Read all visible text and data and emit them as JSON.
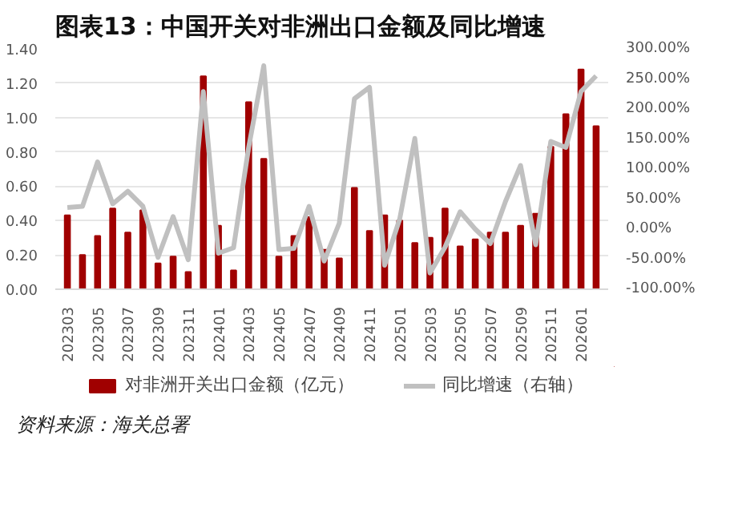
{
  "chart_data": {
    "type": "bar",
    "title": "图表13：中国开关对非洲出口金额及同比增速",
    "categories": [
      "202303",
      null,
      "202305",
      null,
      "202307",
      null,
      "202309",
      null,
      "202311",
      null,
      "202401",
      null,
      "202403",
      null,
      "202405",
      null,
      "202407",
      null,
      "202409",
      null,
      "202411",
      null,
      "202501",
      null,
      "202503",
      null,
      "202505",
      null,
      "202507",
      null,
      "202509",
      null,
      "202511",
      null,
      "202601",
      null
    ],
    "series": [
      {
        "name": "对非洲开关出口金额（亿元）",
        "color": "#a00000",
        "values": [
          0.43,
          0.2,
          0.31,
          0.47,
          0.33,
          0.46,
          0.15,
          0.19,
          0.1,
          1.24,
          0.37,
          0.11,
          1.09,
          0.76,
          0.19,
          0.31,
          0.42,
          0.23,
          0.18,
          0.59,
          0.34,
          0.43,
          0.4,
          0.27,
          0.3,
          0.47,
          0.25,
          0.29,
          0.33,
          0.33,
          0.37,
          0.44,
          0.83,
          1.02,
          1.28,
          0.95
        ]
      },
      {
        "name": "同比增速（右轴）",
        "type": "line",
        "axis": "y2",
        "color": "#c0c0c0",
        "values": [
          36,
          38,
          112,
          42,
          63,
          38,
          -47,
          21,
          -51,
          229,
          -40,
          -31,
          136,
          272,
          -34,
          -32,
          38,
          -53,
          10,
          217,
          236,
          -60,
          17,
          151,
          -73,
          -30,
          29,
          0,
          -24,
          46,
          106,
          -26,
          146,
          136,
          229,
          255
        ]
      }
    ],
    "ylim": [
      0,
      1.4
    ],
    "yticks": [
      {
        "value": 0,
        "label": "0.00"
      },
      {
        "value": 0.2,
        "label": "0.20"
      },
      {
        "value": 0.4,
        "label": "0.40"
      },
      {
        "value": 0.6,
        "label": "0.60"
      },
      {
        "value": 0.8,
        "label": "0.80"
      },
      {
        "value": 1.0,
        "label": "1.00"
      },
      {
        "value": 1.2,
        "label": "1.20"
      },
      {
        "value": 1.4,
        "label": "1.40"
      }
    ],
    "y2lim": [
      -100,
      300
    ],
    "y2ticks": [
      {
        "value": -100,
        "label": "-100.00%"
      },
      {
        "value": -50,
        "label": "-50.00%"
      },
      {
        "value": 0,
        "label": "0.00%"
      },
      {
        "value": 50,
        "label": "50.00%"
      },
      {
        "value": 100,
        "label": "100.00%"
      },
      {
        "value": 150,
        "label": "150.00%"
      },
      {
        "value": 200,
        "label": "200.00%"
      },
      {
        "value": 250,
        "label": "250.00%"
      },
      {
        "value": 300,
        "label": "300.00%"
      }
    ],
    "grid": "y",
    "legend": "bottom",
    "annotations": [
      "资料来源：海关总署"
    ]
  }
}
